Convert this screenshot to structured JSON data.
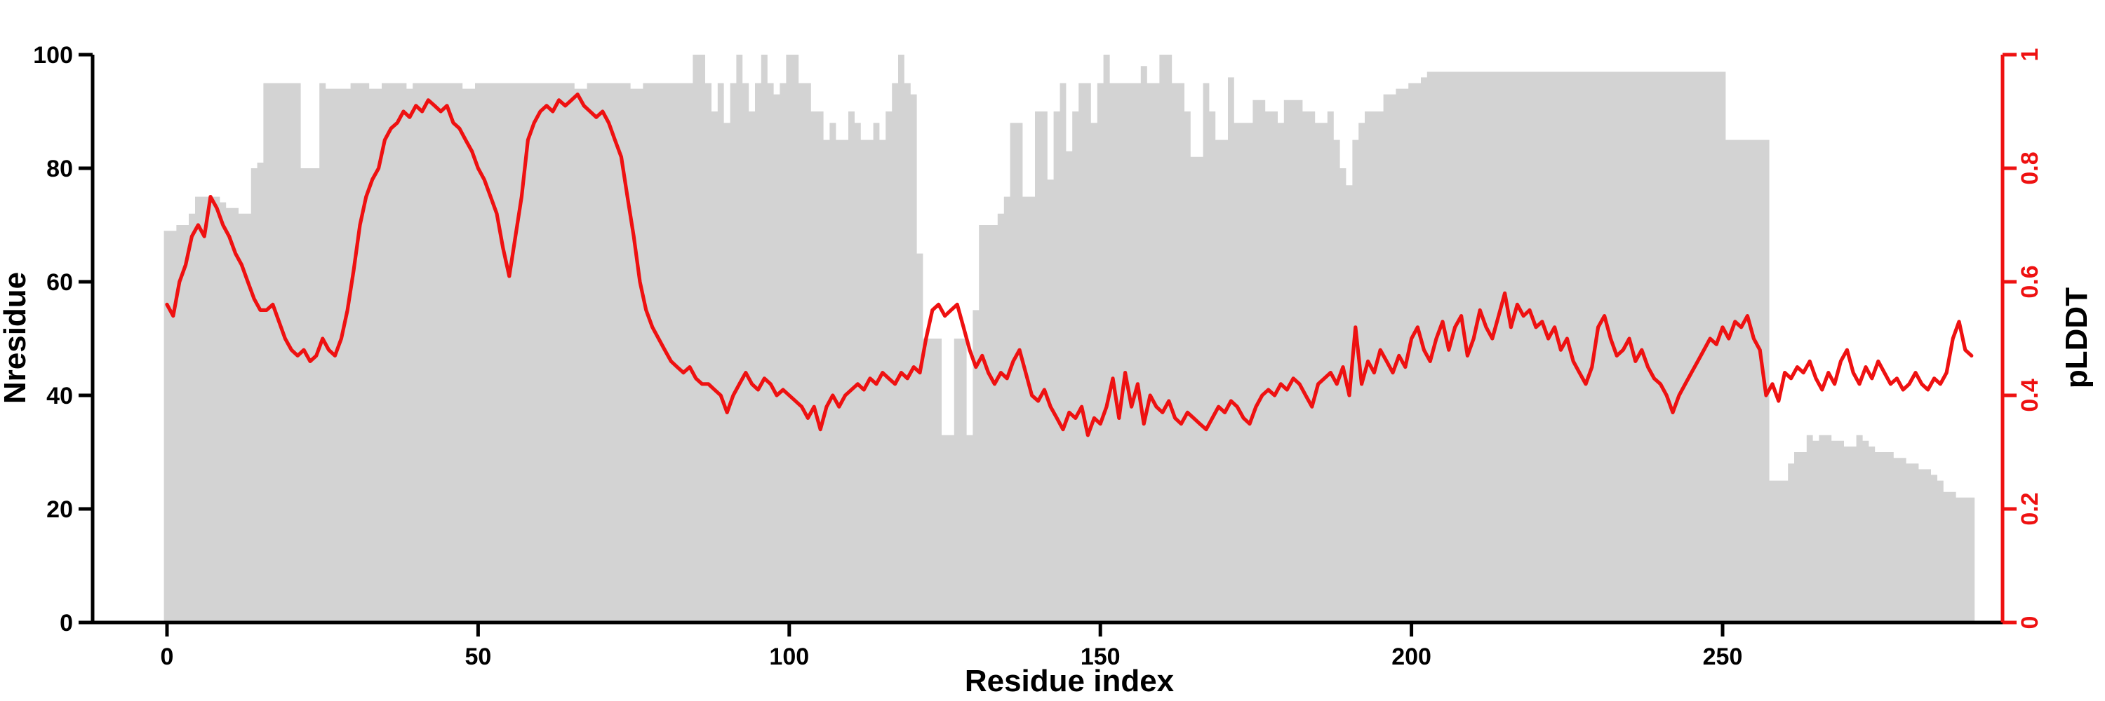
{
  "figure": {
    "colors": {
      "bars": "#d3d3d3",
      "line": "#ee1111",
      "axis": "#000000",
      "background": "#ffffff"
    }
  },
  "chart_data": {
    "type": "bar",
    "title": "",
    "xlabel": "Residue index",
    "ylabel_left": "Nresidue",
    "ylabel_right": "pLDDT",
    "x_start": 0,
    "x_step": 1,
    "xlim": [
      0,
      290
    ],
    "ylim_left": [
      0,
      100
    ],
    "ylim_right": [
      0,
      1
    ],
    "x_ticks": [
      0,
      50,
      100,
      150,
      200,
      250
    ],
    "y_ticks_left": [
      0,
      20,
      40,
      60,
      80,
      100
    ],
    "y_ticks_right": [
      0,
      0.2,
      0.4,
      0.6,
      0.8,
      1
    ],
    "grid": false,
    "legend": "none",
    "series": [
      {
        "name": "Nresidue",
        "type": "bar",
        "axis": "left",
        "color": "#d3d3d3",
        "values": [
          69,
          69,
          70,
          70,
          72,
          75,
          75,
          75,
          75,
          74,
          73,
          73,
          72,
          72,
          80,
          81,
          95,
          95,
          95,
          95,
          95,
          95,
          80,
          80,
          80,
          95,
          94,
          94,
          94,
          94,
          95,
          95,
          95,
          94,
          94,
          95,
          95,
          95,
          95,
          94,
          95,
          95,
          95,
          95,
          95,
          95,
          95,
          95,
          94,
          94,
          95,
          95,
          95,
          95,
          95,
          95,
          95,
          95,
          95,
          95,
          95,
          95,
          95,
          95,
          95,
          95,
          94,
          94,
          95,
          95,
          95,
          95,
          95,
          95,
          95,
          94,
          94,
          95,
          95,
          95,
          95,
          95,
          95,
          95,
          95,
          100,
          100,
          95,
          90,
          95,
          88,
          95,
          100,
          95,
          90,
          95,
          100,
          95,
          93,
          95,
          100,
          100,
          95,
          95,
          90,
          90,
          85,
          88,
          85,
          85,
          90,
          88,
          85,
          85,
          88,
          85,
          90,
          95,
          100,
          95,
          93,
          65,
          50,
          50,
          50,
          33,
          33,
          50,
          50,
          33,
          55,
          70,
          70,
          70,
          72,
          75,
          88,
          88,
          75,
          75,
          90,
          90,
          78,
          90,
          95,
          83,
          90,
          95,
          95,
          88,
          95,
          100,
          95,
          95,
          95,
          95,
          95,
          98,
          95,
          95,
          100,
          100,
          95,
          95,
          90,
          82,
          82,
          95,
          90,
          85,
          85,
          96,
          88,
          88,
          88,
          92,
          92,
          90,
          90,
          88,
          92,
          92,
          92,
          90,
          90,
          88,
          88,
          90,
          85,
          80,
          77,
          85,
          88,
          90,
          90,
          90,
          93,
          93,
          94,
          94,
          95,
          95,
          96,
          97,
          97,
          97,
          97,
          97,
          97,
          97,
          97,
          97,
          97,
          97,
          97,
          97,
          97,
          97,
          97,
          97,
          97,
          97,
          97,
          97,
          97,
          97,
          97,
          97,
          97,
          97,
          97,
          97,
          97,
          97,
          97,
          97,
          97,
          97,
          97,
          97,
          97,
          97,
          97,
          97,
          97,
          97,
          97,
          97,
          97,
          97,
          97,
          85,
          85,
          85,
          85,
          85,
          85,
          85,
          25,
          25,
          25,
          28,
          30,
          30,
          33,
          32,
          33,
          33,
          32,
          32,
          31,
          31,
          33,
          32,
          31,
          30,
          30,
          30,
          29,
          29,
          28,
          28,
          27,
          27,
          26,
          25,
          23,
          23,
          22,
          22,
          22
        ]
      },
      {
        "name": "pLDDT",
        "type": "line",
        "axis": "right",
        "color": "#ee1111",
        "values": [
          0.56,
          0.54,
          0.6,
          0.63,
          0.68,
          0.7,
          0.68,
          0.75,
          0.73,
          0.7,
          0.68,
          0.65,
          0.63,
          0.6,
          0.57,
          0.55,
          0.55,
          0.56,
          0.53,
          0.5,
          0.48,
          0.47,
          0.48,
          0.46,
          0.47,
          0.5,
          0.48,
          0.47,
          0.5,
          0.55,
          0.62,
          0.7,
          0.75,
          0.78,
          0.8,
          0.85,
          0.87,
          0.88,
          0.9,
          0.89,
          0.91,
          0.9,
          0.92,
          0.91,
          0.9,
          0.91,
          0.88,
          0.87,
          0.85,
          0.83,
          0.8,
          0.78,
          0.75,
          0.72,
          0.66,
          0.61,
          0.68,
          0.75,
          0.85,
          0.88,
          0.9,
          0.91,
          0.9,
          0.92,
          0.91,
          0.92,
          0.93,
          0.91,
          0.9,
          0.89,
          0.9,
          0.88,
          0.85,
          0.82,
          0.75,
          0.68,
          0.6,
          0.55,
          0.52,
          0.5,
          0.48,
          0.46,
          0.45,
          0.44,
          0.45,
          0.43,
          0.42,
          0.42,
          0.41,
          0.4,
          0.37,
          0.4,
          0.42,
          0.44,
          0.42,
          0.41,
          0.43,
          0.42,
          0.4,
          0.41,
          0.4,
          0.39,
          0.38,
          0.36,
          0.38,
          0.34,
          0.38,
          0.4,
          0.38,
          0.4,
          0.41,
          0.42,
          0.41,
          0.43,
          0.42,
          0.44,
          0.43,
          0.42,
          0.44,
          0.43,
          0.45,
          0.44,
          0.5,
          0.55,
          0.56,
          0.54,
          0.55,
          0.56,
          0.52,
          0.48,
          0.45,
          0.47,
          0.44,
          0.42,
          0.44,
          0.43,
          0.46,
          0.48,
          0.44,
          0.4,
          0.39,
          0.41,
          0.38,
          0.36,
          0.34,
          0.37,
          0.36,
          0.38,
          0.33,
          0.36,
          0.35,
          0.38,
          0.43,
          0.36,
          0.44,
          0.38,
          0.42,
          0.35,
          0.4,
          0.38,
          0.37,
          0.39,
          0.36,
          0.35,
          0.37,
          0.36,
          0.35,
          0.34,
          0.36,
          0.38,
          0.37,
          0.39,
          0.38,
          0.36,
          0.35,
          0.38,
          0.4,
          0.41,
          0.4,
          0.42,
          0.41,
          0.43,
          0.42,
          0.4,
          0.38,
          0.42,
          0.43,
          0.44,
          0.42,
          0.45,
          0.4,
          0.52,
          0.42,
          0.46,
          0.44,
          0.48,
          0.46,
          0.44,
          0.47,
          0.45,
          0.5,
          0.52,
          0.48,
          0.46,
          0.5,
          0.53,
          0.48,
          0.52,
          0.54,
          0.47,
          0.5,
          0.55,
          0.52,
          0.5,
          0.54,
          0.58,
          0.52,
          0.56,
          0.54,
          0.55,
          0.52,
          0.53,
          0.5,
          0.52,
          0.48,
          0.5,
          0.46,
          0.44,
          0.42,
          0.45,
          0.52,
          0.54,
          0.5,
          0.47,
          0.48,
          0.5,
          0.46,
          0.48,
          0.45,
          0.43,
          0.42,
          0.4,
          0.37,
          0.4,
          0.42,
          0.44,
          0.46,
          0.48,
          0.5,
          0.49,
          0.52,
          0.5,
          0.53,
          0.52,
          0.54,
          0.5,
          0.48,
          0.4,
          0.42,
          0.39,
          0.44,
          0.43,
          0.45,
          0.44,
          0.46,
          0.43,
          0.41,
          0.44,
          0.42,
          0.46,
          0.48,
          0.44,
          0.42,
          0.45,
          0.43,
          0.46,
          0.44,
          0.42,
          0.43,
          0.41,
          0.42,
          0.44,
          0.42,
          0.41,
          0.43,
          0.42,
          0.44,
          0.5,
          0.53,
          0.48,
          0.47
        ]
      }
    ]
  }
}
